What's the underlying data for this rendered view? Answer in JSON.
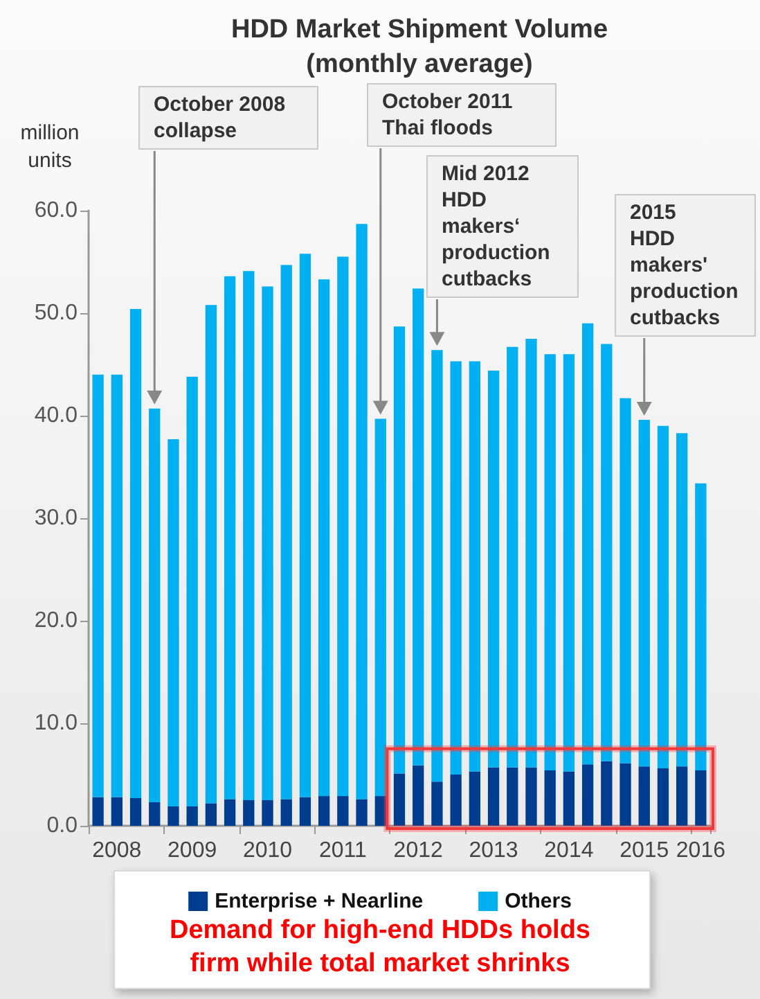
{
  "chart_data": {
    "type": "bar",
    "stacked": true,
    "title": "HDD Market Shipment Volume\n(monthly average)",
    "ylabel": "million\nunits",
    "categories": [
      null,
      "2008",
      null,
      null,
      null,
      "2009",
      null,
      null,
      null,
      "2010",
      null,
      null,
      null,
      "2011",
      null,
      null,
      null,
      "2012",
      null,
      null,
      null,
      "2013",
      null,
      null,
      null,
      "2014",
      null,
      null,
      null,
      "2015",
      null,
      null,
      "2016"
    ],
    "series": [
      {
        "name": "Enterprise + Nearline",
        "color": "#003d8f",
        "values": [
          2.8,
          2.8,
          2.7,
          2.3,
          1.9,
          1.9,
          2.2,
          2.6,
          2.5,
          2.5,
          2.6,
          2.8,
          2.9,
          2.9,
          2.6,
          2.9,
          5.1,
          5.9,
          4.3,
          5.0,
          5.3,
          5.7,
          5.7,
          5.7,
          5.4,
          5.3,
          6.0,
          6.3,
          6.1,
          5.8,
          5.6,
          5.8,
          5.4
        ]
      },
      {
        "name": "Others",
        "color": "#00b0f0",
        "values": [
          41.2,
          41.2,
          47.7,
          38.4,
          35.8,
          41.9,
          48.6,
          51.0,
          51.6,
          50.1,
          52.1,
          53.0,
          50.4,
          52.6,
          56.1,
          36.8,
          43.6,
          46.5,
          42.1,
          40.3,
          40.0,
          38.7,
          41.0,
          41.8,
          40.6,
          40.7,
          43.0,
          40.7,
          35.6,
          33.8,
          33.4,
          32.5,
          28.0
        ]
      }
    ],
    "ylim": [
      0,
      60
    ],
    "yticks": [
      {
        "value": 0,
        "label": "0.0"
      },
      {
        "value": 10,
        "label": "10.0"
      },
      {
        "value": 20,
        "label": "20.0"
      },
      {
        "value": 30,
        "label": "30.0"
      },
      {
        "value": 40,
        "label": "40.0"
      },
      {
        "value": 50,
        "label": "50.0"
      },
      {
        "value": 60,
        "label": "60.0"
      }
    ],
    "legend": "bottom",
    "annotations": [
      "October 2008\ncollapse",
      "October 2011\nThai floods",
      "Mid 2012\nHDD\nmakers‘\nproduction\ncutbacks",
      "2015\nHDD\nmakers'\nproduction\ncutbacks",
      "Demand for high-end HDDs holds\nfirm while total market shrinks"
    ]
  }
}
